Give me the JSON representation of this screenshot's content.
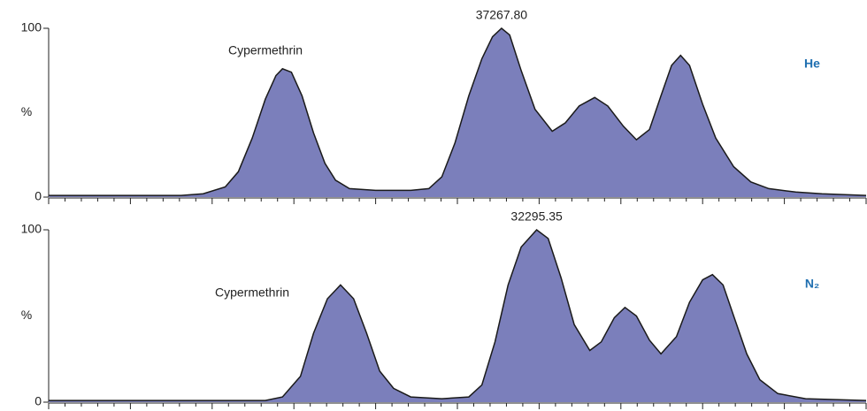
{
  "chart_data": [
    {
      "type": "area",
      "annotation": "37267.80",
      "compound": "Cypermethrin",
      "gas": "He",
      "ylabel": "%",
      "color": "#7b7fbb",
      "line_color": "#1a1a1a",
      "gas_color": "#1f6fb0",
      "xlim": [
        0,
        100
      ],
      "ylim": [
        0,
        100
      ],
      "yticks": [
        0,
        100
      ],
      "xticks": [
        0,
        2,
        4,
        6,
        8,
        10,
        12,
        14,
        16,
        18,
        20,
        22,
        24,
        26,
        28,
        30,
        32,
        34,
        36,
        38,
        40,
        42,
        44,
        46,
        48,
        50,
        52,
        54,
        56,
        58,
        60,
        62,
        64,
        66,
        68,
        70,
        72,
        74,
        76,
        78,
        80,
        82,
        84,
        86,
        88,
        90,
        92,
        94,
        96,
        98,
        100
      ],
      "x": [
        0,
        16.2,
        18.9,
        21.6,
        23.2,
        24.9,
        26.5,
        27.8,
        28.6,
        29.7,
        31.0,
        32.4,
        33.8,
        35.1,
        36.8,
        40.0,
        44.3,
        46.5,
        48.1,
        49.7,
        51.4,
        53.0,
        54.3,
        55.4,
        56.4,
        57.8,
        59.5,
        61.6,
        63.2,
        64.9,
        66.8,
        68.4,
        70.3,
        71.9,
        73.5,
        74.9,
        76.2,
        77.3,
        78.4,
        80.0,
        81.6,
        83.8,
        85.9,
        88.1,
        91.4,
        94.6,
        100
      ],
      "values": [
        1,
        1,
        2,
        6,
        15,
        35,
        58,
        72,
        76,
        74,
        60,
        38,
        20,
        10,
        5,
        4,
        4,
        5,
        12,
        32,
        60,
        82,
        95,
        100,
        96,
        75,
        52,
        39,
        44,
        54,
        59,
        54,
        42,
        34,
        40,
        60,
        78,
        84,
        78,
        55,
        35,
        18,
        9,
        5,
        3,
        2,
        1
      ]
    },
    {
      "type": "area",
      "annotation": "32295.35",
      "compound": "Cypermethrin",
      "gas": "N₂",
      "ylabel": "%",
      "color": "#7b7fbb",
      "line_color": "#1a1a1a",
      "gas_color": "#1f6fb0",
      "xlim": [
        0,
        100
      ],
      "ylim": [
        0,
        100
      ],
      "yticks": [
        0,
        100
      ],
      "xticks": [
        0,
        2,
        4,
        6,
        8,
        10,
        12,
        14,
        16,
        18,
        20,
        22,
        24,
        26,
        28,
        30,
        32,
        34,
        36,
        38,
        40,
        42,
        44,
        46,
        48,
        50,
        52,
        54,
        56,
        58,
        60,
        62,
        64,
        66,
        68,
        70,
        72,
        74,
        76,
        78,
        80,
        82,
        84,
        86,
        88,
        90,
        92,
        94,
        96,
        98,
        100
      ],
      "x": [
        0,
        26.5,
        28.6,
        30.8,
        32.4,
        34.1,
        35.7,
        37.3,
        38.9,
        40.5,
        42.2,
        44.3,
        48.1,
        51.4,
        53.0,
        54.6,
        56.2,
        57.8,
        59.7,
        61.1,
        62.7,
        64.3,
        66.2,
        67.6,
        69.2,
        70.5,
        71.9,
        73.5,
        74.9,
        76.8,
        78.4,
        80.0,
        81.2,
        82.5,
        83.8,
        85.4,
        87.0,
        89.2,
        92.6,
        100
      ],
      "values": [
        1,
        1,
        3,
        15,
        40,
        60,
        68,
        60,
        40,
        18,
        8,
        3,
        2,
        3,
        10,
        35,
        68,
        90,
        100,
        95,
        72,
        45,
        30,
        35,
        49,
        55,
        50,
        36,
        28,
        38,
        58,
        71,
        74,
        68,
        50,
        28,
        13,
        5,
        2,
        1
      ]
    }
  ]
}
